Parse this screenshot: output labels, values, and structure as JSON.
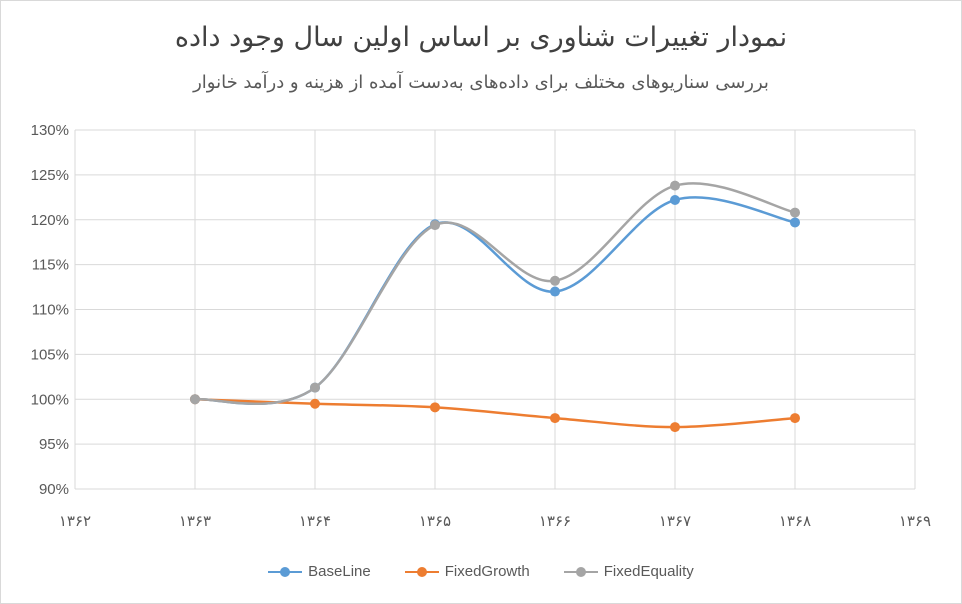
{
  "chart_data": {
    "type": "line",
    "title": "نمودار تغییرات شناوری بر اساس اولین سال وجود داده",
    "subtitle": "بررسی سناریوهای مختلف برای داده‌های به‌دست آمده از هزینه و درآمد خانوار",
    "x": [
      1363,
      1364,
      1365,
      1366,
      1367,
      1368
    ],
    "x_ticks": [
      "۱۳۶۲",
      "۱۳۶۳",
      "۱۳۶۴",
      "۱۳۶۵",
      "۱۳۶۶",
      "۱۳۶۷",
      "۱۳۶۸",
      "۱۳۶۹"
    ],
    "xlim": [
      1362,
      1369
    ],
    "ylim": [
      90,
      130
    ],
    "y_ticks": [
      "90%",
      "95%",
      "100%",
      "105%",
      "110%",
      "115%",
      "120%",
      "125%",
      "130%"
    ],
    "grid": true,
    "smooth": true,
    "legend_position": "bottom",
    "series": [
      {
        "name": "BaseLine",
        "color": "#5b9bd5",
        "values": [
          100.0,
          101.3,
          119.5,
          112.0,
          122.2,
          119.7
        ]
      },
      {
        "name": "FixedGrowth",
        "color": "#ed7d31",
        "values": [
          100.0,
          99.5,
          99.1,
          97.9,
          96.9,
          97.9
        ]
      },
      {
        "name": "FixedEquality",
        "color": "#a5a5a5",
        "values": [
          100.0,
          101.3,
          119.4,
          113.2,
          123.8,
          120.8
        ]
      }
    ]
  }
}
